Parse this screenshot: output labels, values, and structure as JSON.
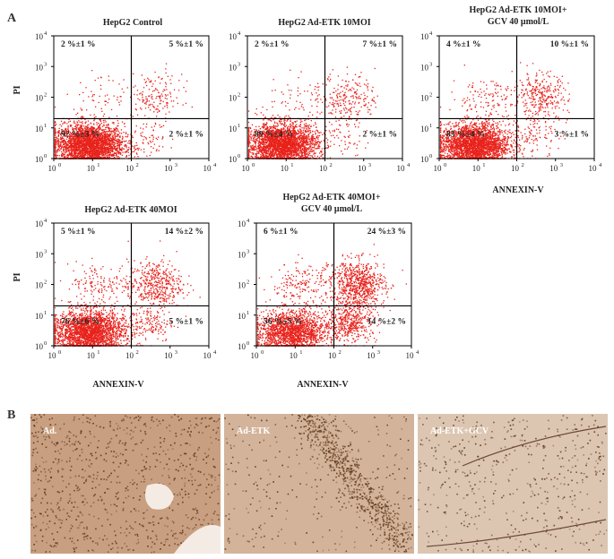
{
  "panel_a_label": "A",
  "panel_b_label": "B",
  "colors": {
    "events": "#e8221b",
    "gate": "#000000",
    "tissue_ad": "#c89f80",
    "tissue_etk": "#d3b49b",
    "tissue_gcv": "#dcc6b2",
    "stain": "#5c3418"
  },
  "chart_data": [
    {
      "type": "scatter",
      "title": "HepG2 Control",
      "xlabel": "",
      "ylabel": "PI",
      "xscale": "log",
      "yscale": "log",
      "xlim": [
        1,
        10000
      ],
      "ylim": [
        1,
        10000
      ],
      "xticks": [
        "10",
        "10",
        "10",
        "10",
        "10"
      ],
      "xtick_exp": [
        "0",
        "1",
        "2",
        "3",
        "4"
      ],
      "yticks": [
        "10",
        "10",
        "10",
        "10",
        "10"
      ],
      "ytick_exp": [
        "0",
        "1",
        "2",
        "3",
        "4"
      ],
      "gate": {
        "x": 100,
        "y": 20
      },
      "quadrants": {
        "upper_left": "2 %±1 %",
        "upper_right": "5 %±1 %",
        "lower_left": "92 %±3 %",
        "lower_right": "2 %±1 %"
      }
    },
    {
      "type": "scatter",
      "title": "HepG2 Ad-ETK 10MOI",
      "xlabel": "",
      "ylabel": "",
      "xscale": "log",
      "yscale": "log",
      "xlim": [
        1,
        10000
      ],
      "ylim": [
        1,
        10000
      ],
      "xticks": [
        "10",
        "10",
        "10",
        "10",
        "10"
      ],
      "xtick_exp": [
        "0",
        "1",
        "2",
        "3",
        "4"
      ],
      "yticks": [
        "10",
        "10",
        "10",
        "10",
        "10"
      ],
      "ytick_exp": [
        "0",
        "1",
        "2",
        "3",
        "4"
      ],
      "gate": {
        "x": 100,
        "y": 20
      },
      "quadrants": {
        "upper_left": "2 %±1 %",
        "upper_right": "7 %±1 %",
        "lower_left": "89 %±4 %",
        "lower_right": "2 %±1 %"
      }
    },
    {
      "type": "scatter",
      "title": "HepG2 Ad-ETK 10MOI+",
      "title2": "GCV 40 μmol/L",
      "xlabel": "ANNEXIN-V",
      "ylabel": "",
      "xscale": "log",
      "yscale": "log",
      "xlim": [
        1,
        10000
      ],
      "ylim": [
        1,
        10000
      ],
      "xticks": [
        "10",
        "10",
        "10",
        "10",
        "10"
      ],
      "xtick_exp": [
        "0",
        "1",
        "2",
        "3",
        "4"
      ],
      "yticks": [
        "10",
        "10",
        "10",
        "10",
        "10"
      ],
      "ytick_exp": [
        "0",
        "1",
        "2",
        "3",
        "4"
      ],
      "gate": {
        "x": 100,
        "y": 20
      },
      "quadrants": {
        "upper_left": "4 %±1 %",
        "upper_right": "10 %±1 %",
        "lower_left": "83 %±4 %",
        "lower_right": "3 %±1 %"
      }
    },
    {
      "type": "scatter",
      "title": "HepG2 Ad-ETK 40MOI",
      "xlabel": "ANNEXIN-V",
      "ylabel": "PI",
      "xscale": "log",
      "yscale": "log",
      "xlim": [
        1,
        10000
      ],
      "ylim": [
        1,
        10000
      ],
      "xticks": [
        "10",
        "10",
        "10",
        "10",
        "10"
      ],
      "xtick_exp": [
        "0",
        "1",
        "2",
        "3",
        "4"
      ],
      "yticks": [
        "10",
        "10",
        "10",
        "10",
        "10"
      ],
      "ytick_exp": [
        "0",
        "1",
        "2",
        "3",
        "4"
      ],
      "gate": {
        "x": 100,
        "y": 20
      },
      "quadrants": {
        "upper_left": "5 %±1 %",
        "upper_right": "14 %±2 %",
        "lower_left": "76 %±6 %",
        "lower_right": "5 %±1 %"
      }
    },
    {
      "type": "scatter",
      "title": "HepG2 Ad-ETK 40MOI+",
      "title2": "GCV 40 μmol/L",
      "xlabel": "ANNEXIN-V",
      "ylabel": "",
      "xscale": "log",
      "yscale": "log",
      "xlim": [
        1,
        10000
      ],
      "ylim": [
        1,
        10000
      ],
      "xticks": [
        "10",
        "10",
        "10",
        "10",
        "10"
      ],
      "xtick_exp": [
        "0",
        "1",
        "2",
        "3",
        "4"
      ],
      "yticks": [
        "10",
        "10",
        "10",
        "10",
        "10"
      ],
      "ytick_exp": [
        "0",
        "1",
        "2",
        "3",
        "4"
      ],
      "gate": {
        "x": 100,
        "y": 20
      },
      "quadrants": {
        "upper_left": "6 %±1 %",
        "upper_right": "24 %±3 %",
        "lower_left": "56 %±5 %",
        "lower_right": "14 %±2 %"
      }
    }
  ],
  "micrographs": [
    {
      "label": "Ad.",
      "tissue": "tissue_ad"
    },
    {
      "label": "Ad-ETK",
      "tissue": "tissue_etk"
    },
    {
      "label": "Ad-ETK+GCV",
      "tissue": "tissue_gcv"
    }
  ]
}
